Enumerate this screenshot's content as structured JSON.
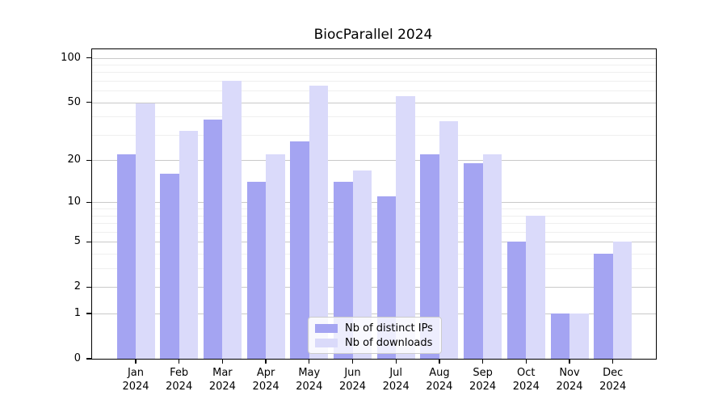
{
  "chart_data": {
    "type": "bar",
    "title": "BiocParallel 2024",
    "categories": [
      "Jan",
      "Feb",
      "Mar",
      "Apr",
      "May",
      "Jun",
      "Jul",
      "Aug",
      "Sep",
      "Oct",
      "Nov",
      "Dec"
    ],
    "year_label": "2024",
    "series": [
      {
        "name": "Nb of distinct IPs",
        "color": "#a4a4f2",
        "values": [
          22,
          16,
          38,
          14,
          27,
          14,
          11,
          22,
          19,
          5,
          1,
          4
        ]
      },
      {
        "name": "Nb of downloads",
        "color": "#dadafa",
        "values": [
          49,
          32,
          70,
          22,
          65,
          17,
          55,
          37,
          22,
          8,
          1,
          5
        ]
      }
    ],
    "yscale": "log1p",
    "ylim": [
      0,
      100
    ],
    "yticks": [
      0,
      1,
      2,
      5,
      10,
      20,
      50,
      100
    ],
    "minor_gridlines": [
      3,
      4,
      6,
      7,
      8,
      9,
      30,
      40,
      60,
      70,
      80,
      90
    ],
    "grid": "on",
    "legend_position": "lower center",
    "colors": {
      "spine": "#000000",
      "grid_major": "#c9c9c9",
      "grid_minor": "#efefef",
      "background": "#ffffff"
    }
  }
}
